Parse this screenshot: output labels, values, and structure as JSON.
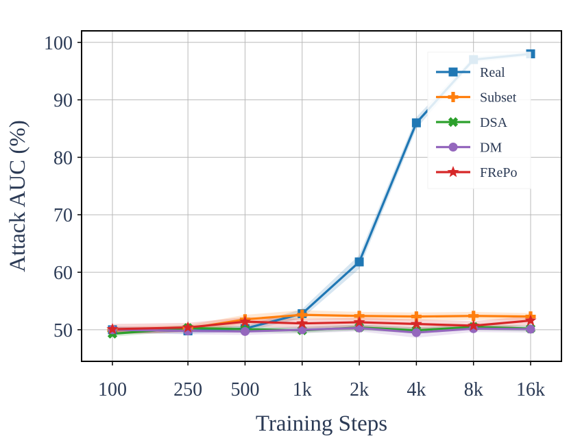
{
  "chart_data": {
    "type": "line",
    "xlabel": "Training Steps",
    "ylabel": "Attack AUC (%)",
    "x_ticks": [
      "100",
      "250",
      "500",
      "1k",
      "2k",
      "4k",
      "8k",
      "16k"
    ],
    "x_values": [
      100,
      250,
      500,
      1000,
      2000,
      4000,
      8000,
      16000
    ],
    "x_scale": "log",
    "y_ticks": [
      "50",
      "60",
      "70",
      "80",
      "90",
      "100"
    ],
    "ylim": [
      44.5,
      102
    ],
    "grid": true,
    "legend_position": "top-right",
    "series": [
      {
        "name": "Real",
        "color": "#1f77b4",
        "marker": "square",
        "values": [
          50.0,
          49.8,
          50.2,
          52.8,
          61.8,
          86.0,
          97.0,
          98.0
        ],
        "band": [
          0.5,
          0.5,
          0.5,
          0.8,
          1.2,
          1.0,
          0.5,
          0.4
        ]
      },
      {
        "name": "Subset",
        "color": "#ff7f0e",
        "marker": "plus",
        "values": [
          49.9,
          50.2,
          51.8,
          52.6,
          52.4,
          52.3,
          52.4,
          52.3
        ],
        "band": [
          0.6,
          0.6,
          0.8,
          0.8,
          0.7,
          0.7,
          0.7,
          0.6
        ]
      },
      {
        "name": "DSA",
        "color": "#2ca02c",
        "marker": "x",
        "values": [
          49.3,
          50.3,
          50.1,
          49.9,
          50.4,
          49.9,
          50.5,
          50.2
        ],
        "band": [
          0.5,
          0.5,
          0.5,
          0.5,
          0.5,
          0.5,
          0.5,
          0.5
        ]
      },
      {
        "name": "DM",
        "color": "#9467bd",
        "marker": "circle",
        "values": [
          50.0,
          49.8,
          49.7,
          50.0,
          50.3,
          49.5,
          50.2,
          50.1
        ],
        "band": [
          0.6,
          0.6,
          0.6,
          0.6,
          0.6,
          0.9,
          0.6,
          0.6
        ]
      },
      {
        "name": "FRePo",
        "color": "#d62728",
        "marker": "star",
        "values": [
          50.1,
          50.4,
          51.4,
          51.1,
          51.3,
          51.0,
          50.7,
          51.6
        ],
        "band": [
          0.9,
          0.8,
          0.8,
          0.8,
          0.8,
          0.8,
          0.8,
          0.8
        ]
      }
    ]
  }
}
